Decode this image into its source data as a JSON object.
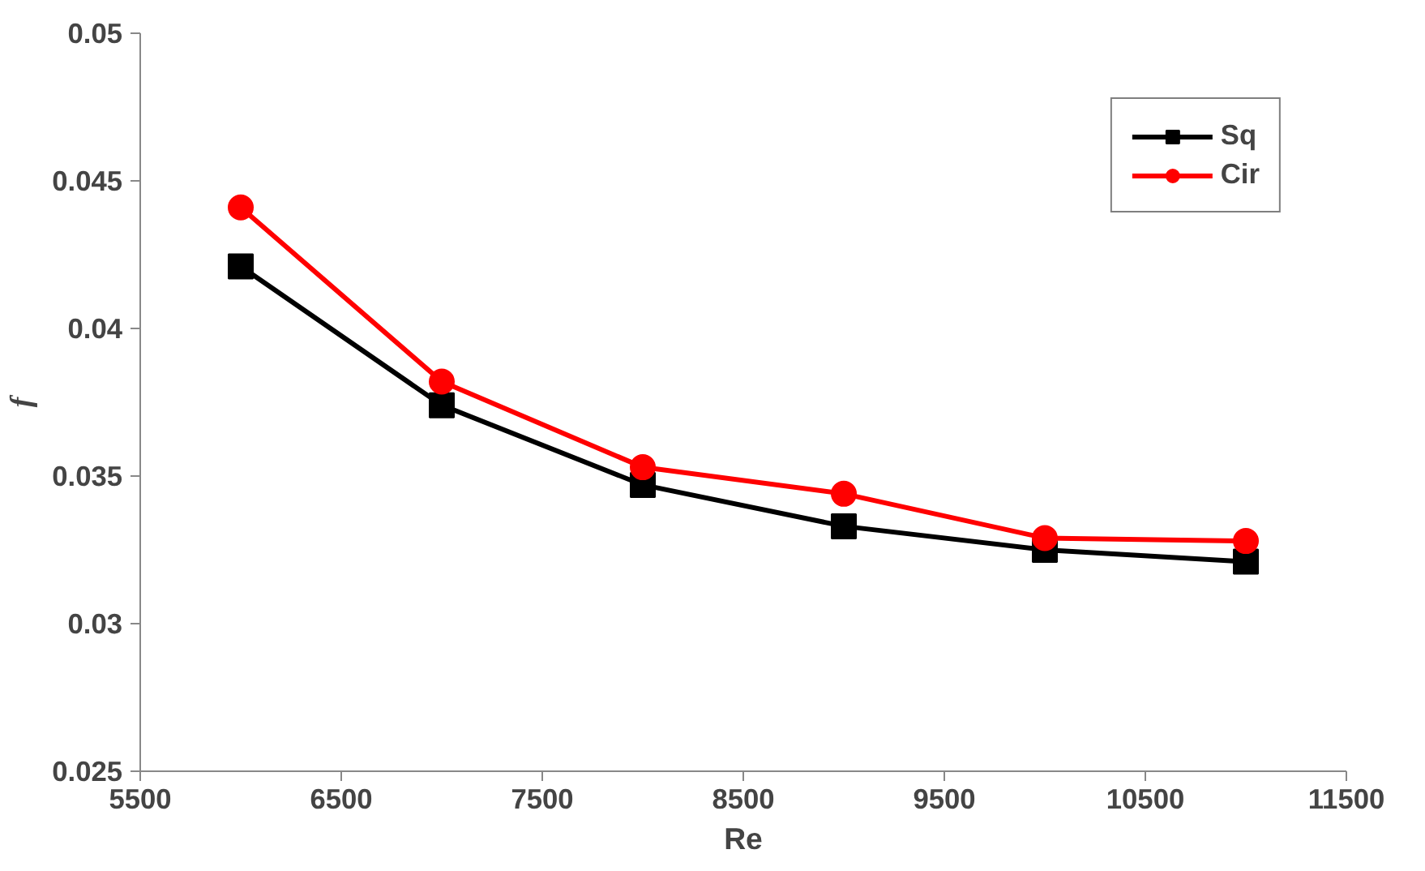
{
  "chart_data": {
    "type": "line",
    "xlabel": "Re",
    "ylabel": "f",
    "x": [
      6000,
      7000,
      8000,
      9000,
      10000,
      11000
    ],
    "series": [
      {
        "name": "Sq",
        "color": "#000000",
        "marker": "square",
        "values": [
          0.0421,
          0.0374,
          0.0347,
          0.0333,
          0.0325,
          0.0321
        ]
      },
      {
        "name": "Cir",
        "color": "#ff0000",
        "marker": "circle",
        "values": [
          0.0441,
          0.0382,
          0.0353,
          0.0344,
          0.0329,
          0.0328
        ]
      }
    ],
    "xlim": [
      5500,
      11500
    ],
    "xticks": [
      5500,
      6500,
      7500,
      8500,
      9500,
      10500,
      11500
    ],
    "ylim": [
      0.025,
      0.05
    ],
    "yticks": [
      0.025,
      0.03,
      0.035,
      0.04,
      0.045,
      0.05
    ],
    "grid": false,
    "legend": "top right",
    "line_style": "solid"
  }
}
